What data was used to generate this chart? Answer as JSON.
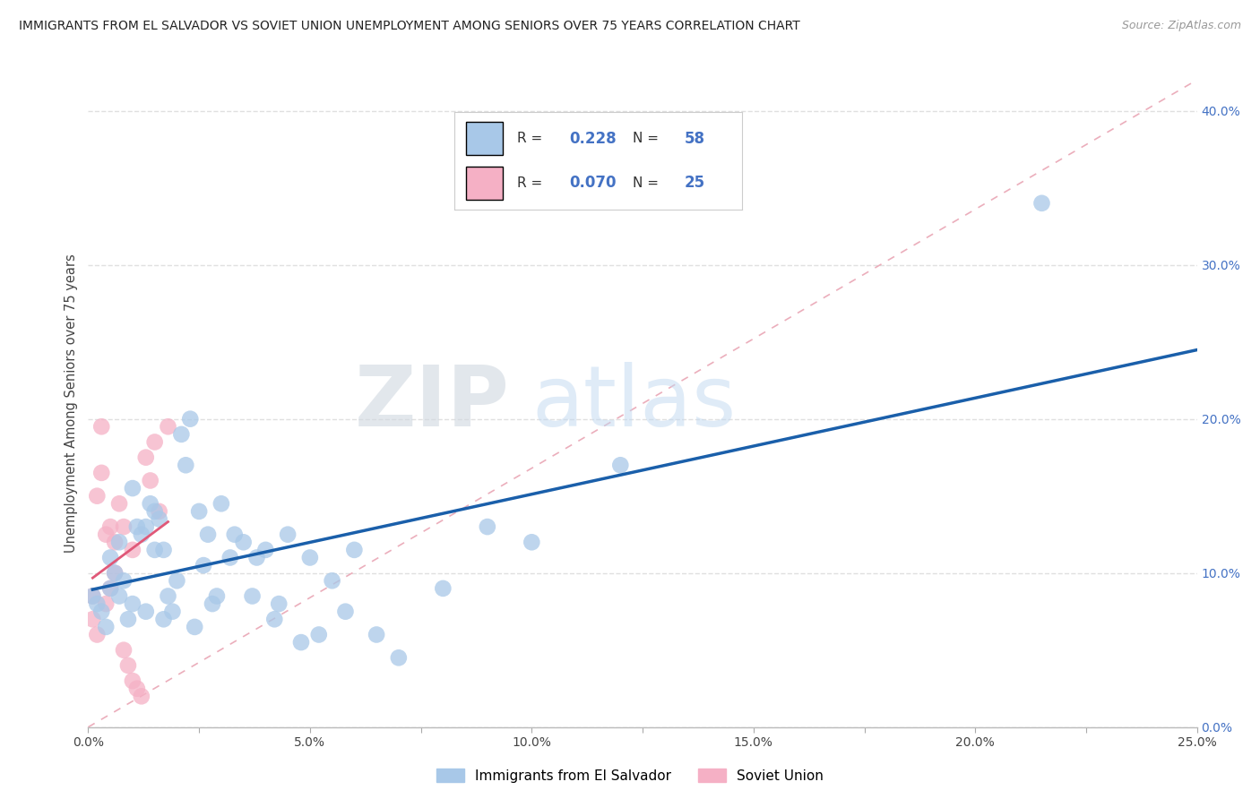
{
  "title": "IMMIGRANTS FROM EL SALVADOR VS SOVIET UNION UNEMPLOYMENT AMONG SENIORS OVER 75 YEARS CORRELATION CHART",
  "source": "Source: ZipAtlas.com",
  "ylabel": "Unemployment Among Seniors over 75 years",
  "xlim": [
    0.0,
    0.25
  ],
  "ylim": [
    0.0,
    0.42
  ],
  "xtick_vals": [
    0.0,
    0.025,
    0.05,
    0.075,
    0.1,
    0.125,
    0.15,
    0.175,
    0.2,
    0.225,
    0.25
  ],
  "xtick_labels": [
    "0.0%",
    "",
    "5.0%",
    "",
    "10.0%",
    "",
    "15.0%",
    "",
    "20.0%",
    "",
    "25.0%"
  ],
  "ytick_vals": [
    0.0,
    0.1,
    0.2,
    0.3,
    0.4
  ],
  "ytick_labels": [
    "0.0%",
    "10.0%",
    "20.0%",
    "30.0%",
    "40.0%"
  ],
  "legend1_label": "Immigrants from El Salvador",
  "legend2_label": "Soviet Union",
  "r1": 0.228,
  "n1": 58,
  "r2": 0.07,
  "n2": 25,
  "color1": "#a8c8e8",
  "color2": "#f5b0c5",
  "trendline1_color": "#1a5faa",
  "trendline2_color": "#e05878",
  "diagonal_color": "#e0a0b0",
  "background_color": "#ffffff",
  "grid_color": "#e0e0e0",
  "watermark_zip": "ZIP",
  "watermark_atlas": "atlas",
  "el_salvador_x": [
    0.001,
    0.002,
    0.003,
    0.004,
    0.005,
    0.005,
    0.006,
    0.007,
    0.007,
    0.008,
    0.009,
    0.01,
    0.01,
    0.011,
    0.012,
    0.013,
    0.013,
    0.014,
    0.015,
    0.015,
    0.016,
    0.017,
    0.017,
    0.018,
    0.019,
    0.02,
    0.021,
    0.022,
    0.023,
    0.024,
    0.025,
    0.026,
    0.027,
    0.028,
    0.029,
    0.03,
    0.032,
    0.033,
    0.035,
    0.037,
    0.038,
    0.04,
    0.042,
    0.043,
    0.045,
    0.048,
    0.05,
    0.052,
    0.055,
    0.058,
    0.06,
    0.065,
    0.07,
    0.08,
    0.09,
    0.1,
    0.12,
    0.215
  ],
  "el_salvador_y": [
    0.085,
    0.08,
    0.075,
    0.065,
    0.11,
    0.09,
    0.1,
    0.12,
    0.085,
    0.095,
    0.07,
    0.155,
    0.08,
    0.13,
    0.125,
    0.13,
    0.075,
    0.145,
    0.115,
    0.14,
    0.135,
    0.115,
    0.07,
    0.085,
    0.075,
    0.095,
    0.19,
    0.17,
    0.2,
    0.065,
    0.14,
    0.105,
    0.125,
    0.08,
    0.085,
    0.145,
    0.11,
    0.125,
    0.12,
    0.085,
    0.11,
    0.115,
    0.07,
    0.08,
    0.125,
    0.055,
    0.11,
    0.06,
    0.095,
    0.075,
    0.115,
    0.06,
    0.045,
    0.09,
    0.13,
    0.12,
    0.17,
    0.34
  ],
  "soviet_x": [
    0.001,
    0.001,
    0.002,
    0.002,
    0.003,
    0.003,
    0.004,
    0.004,
    0.005,
    0.005,
    0.006,
    0.006,
    0.007,
    0.008,
    0.008,
    0.009,
    0.01,
    0.01,
    0.011,
    0.012,
    0.013,
    0.014,
    0.015,
    0.016,
    0.018
  ],
  "soviet_y": [
    0.085,
    0.07,
    0.15,
    0.06,
    0.195,
    0.165,
    0.125,
    0.08,
    0.13,
    0.09,
    0.12,
    0.1,
    0.145,
    0.13,
    0.05,
    0.04,
    0.115,
    0.03,
    0.025,
    0.02,
    0.175,
    0.16,
    0.185,
    0.14,
    0.195
  ]
}
